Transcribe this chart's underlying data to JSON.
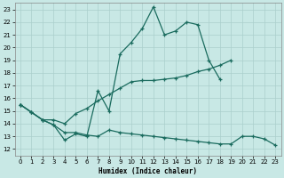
{
  "xlabel": "Humidex (Indice chaleur)",
  "xlim": [
    -0.5,
    23.5
  ],
  "ylim": [
    11.5,
    23.5
  ],
  "yticks": [
    12,
    13,
    14,
    15,
    16,
    17,
    18,
    19,
    20,
    21,
    22,
    23
  ],
  "xticks": [
    0,
    1,
    2,
    3,
    4,
    5,
    6,
    7,
    8,
    9,
    10,
    11,
    12,
    13,
    14,
    15,
    16,
    17,
    18,
    19,
    20,
    21,
    22,
    23
  ],
  "bg_color": "#c8e8e5",
  "grid_color": "#aacfcc",
  "line_color": "#1a6b5e",
  "series1_x": [
    0,
    1,
    2,
    3,
    4,
    5,
    6,
    7,
    8,
    9,
    10,
    11,
    12,
    13,
    14,
    15,
    16,
    17,
    18
  ],
  "series1_y": [
    15.5,
    14.9,
    14.3,
    13.9,
    12.7,
    13.2,
    13.0,
    16.6,
    15.0,
    19.5,
    20.4,
    21.5,
    23.2,
    21.0,
    21.3,
    22.0,
    21.8,
    19.0,
    17.5
  ],
  "series2_x": [
    0,
    1,
    2,
    3,
    4,
    5,
    6,
    7,
    8,
    9,
    10,
    11,
    12,
    13,
    14,
    15,
    16,
    17,
    18,
    19
  ],
  "series2_y": [
    15.5,
    14.9,
    14.3,
    14.3,
    14.0,
    14.8,
    15.2,
    15.8,
    16.3,
    16.8,
    17.3,
    17.4,
    17.4,
    17.5,
    17.6,
    17.8,
    18.1,
    18.3,
    18.6,
    19.0
  ],
  "series3_x": [
    0,
    1,
    2,
    3,
    4,
    5,
    6,
    7,
    8,
    9,
    10,
    11,
    12,
    13,
    14,
    15,
    16,
    17,
    18,
    19,
    20,
    21,
    22,
    23
  ],
  "series3_y": [
    15.5,
    14.9,
    14.3,
    13.9,
    13.3,
    13.3,
    13.1,
    13.0,
    13.5,
    13.3,
    13.2,
    13.1,
    13.0,
    12.9,
    12.8,
    12.7,
    12.6,
    12.5,
    12.4,
    12.4,
    13.0,
    13.0,
    12.8,
    12.3
  ]
}
